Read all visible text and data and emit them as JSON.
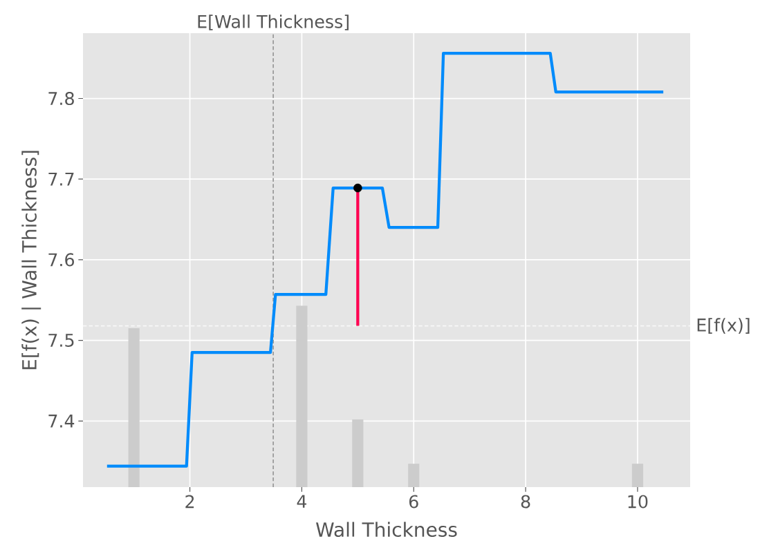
{
  "chart_data": {
    "type": "line",
    "xlabel": "Wall Thickness",
    "ylabel": "E[f(x) | Wall Thickness]",
    "xlim": [
      0.09,
      10.94
    ],
    "ylim": [
      7.318,
      7.881
    ],
    "xticks": [
      2,
      4,
      6,
      8,
      10
    ],
    "yticks": [
      7.4,
      7.5,
      7.6,
      7.7,
      7.8
    ],
    "grid": true,
    "series": [
      {
        "type": "bar",
        "color": "#cccccc",
        "x": [
          1,
          4,
          5,
          6,
          10
        ],
        "values": [
          7.515,
          7.543,
          7.402,
          7.347,
          7.347
        ]
      },
      {
        "type": "line",
        "color": "#008bfb",
        "x": [
          0.52,
          1.94,
          2.04,
          3.44,
          3.53,
          4.43,
          4.56,
          5.44,
          5.56,
          6.43,
          6.53,
          8.44,
          8.54,
          10.46
        ],
        "values": [
          7.344,
          7.344,
          7.485,
          7.485,
          7.557,
          7.557,
          7.689,
          7.689,
          7.64,
          7.64,
          7.856,
          7.856,
          7.808,
          7.808
        ]
      },
      {
        "type": "line",
        "color": "#ff0051",
        "x": [
          5,
          5
        ],
        "values": [
          7.518,
          7.689
        ]
      },
      {
        "type": "scatter",
        "color": "#000000",
        "marker": "circle",
        "x": [
          5
        ],
        "values": [
          7.689
        ]
      }
    ],
    "ref_lines": [
      {
        "axis": "x",
        "value": 3.49,
        "label": "E[Wall Thickness]",
        "color": "#999999",
        "line_style": "dashed"
      },
      {
        "axis": "y",
        "value": 7.518,
        "label": "E[f(x)]",
        "color": "#f8f8f8",
        "line_style": "dashed"
      }
    ]
  }
}
